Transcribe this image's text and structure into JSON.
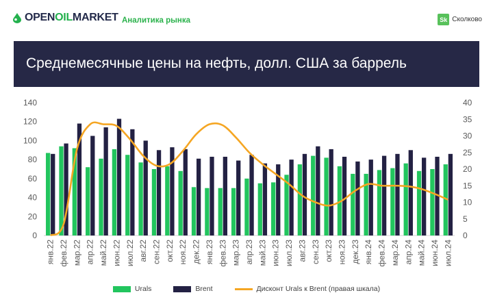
{
  "header": {
    "logo_prefix": "OPEN",
    "logo_accent": "OIL",
    "logo_suffix": "MARKET",
    "tagline": "Аналитика рынка",
    "partner_badge": "Sk",
    "partner_name": "Сколково",
    "title": "Среднемесячные цены на нефть, долл. США за баррель"
  },
  "colors": {
    "urals": "#22c55e",
    "brent": "#232143",
    "discount": "#f5a623",
    "title_band": "#262846"
  },
  "chart_data": {
    "type": "bar",
    "categories": [
      "янв.22",
      "фев.22",
      "мар.22",
      "апр.22",
      "май.22",
      "июн.22",
      "июл.22",
      "авг.22",
      "сен.22",
      "окт.22",
      "ноя.22",
      "дек.22",
      "янв.23",
      "фев.23",
      "мар.23",
      "апр.23",
      "май.23",
      "июн.23",
      "июл.23",
      "авг.23",
      "сен.23",
      "окт.23",
      "ноя.23",
      "дек.23",
      "янв.24",
      "фев.24",
      "мар.24",
      "апр.24",
      "май.24",
      "июн.24",
      "июл.24"
    ],
    "series": [
      {
        "name": "Urals",
        "kind": "bar",
        "axis": "left",
        "values": [
          87,
          94,
          92,
          72,
          81,
          91,
          85,
          77,
          70,
          73,
          68,
          51,
          50,
          50,
          50,
          60,
          55,
          56,
          64,
          75,
          84,
          82,
          73,
          65,
          65,
          69,
          71,
          76,
          68,
          70,
          75
        ]
      },
      {
        "name": "Brent",
        "kind": "bar",
        "axis": "left",
        "values": [
          86,
          97,
          118,
          105,
          114,
          123,
          112,
          100,
          90,
          93,
          91,
          81,
          83,
          83,
          79,
          85,
          76,
          75,
          80,
          86,
          94,
          91,
          83,
          78,
          80,
          84,
          86,
          90,
          82,
          83,
          86
        ]
      },
      {
        "name": "Дисконт Urals к Brent (правая шкала)",
        "kind": "line",
        "axis": "right",
        "values": [
          0,
          3.5,
          26,
          33.5,
          33.5,
          33,
          29,
          24,
          21,
          21.5,
          25.5,
          30.5,
          33.5,
          33.2,
          29.5,
          25,
          21.5,
          18.5,
          15.5,
          12,
          10,
          9,
          10.5,
          13.5,
          15.5,
          15,
          15,
          14.8,
          14,
          12.5,
          10.8
        ]
      }
    ],
    "y_left": {
      "min": 0,
      "max": 140,
      "ticks": [
        0,
        20,
        40,
        60,
        80,
        100,
        120,
        140
      ]
    },
    "y_right": {
      "min": 0,
      "max": 40,
      "ticks": [
        0,
        5,
        10,
        15,
        20,
        25,
        30,
        35,
        40
      ]
    },
    "grid": false,
    "legend": "bottom"
  }
}
